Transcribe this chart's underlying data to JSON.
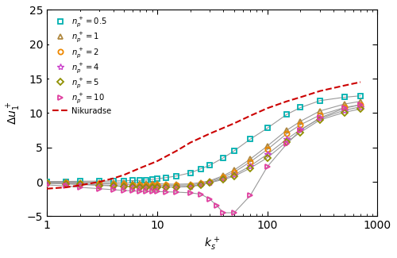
{
  "xlim": [
    1,
    1000
  ],
  "ylim": [
    -5,
    25
  ],
  "yticks": [
    -5,
    0,
    5,
    10,
    15,
    20,
    25
  ],
  "series": [
    {
      "label": "$n_p^+=0.5$",
      "color": "#00b0b0",
      "marker": "s",
      "markersize": 4.5,
      "mew": 1.3,
      "ks": [
        1,
        1.5,
        2,
        3,
        4,
        5,
        6,
        7,
        8,
        9,
        10,
        12,
        15,
        20,
        25,
        30,
        40,
        50,
        70,
        100,
        150,
        200,
        300,
        500,
        700
      ],
      "du": [
        0.05,
        0.05,
        0.08,
        0.1,
        0.12,
        0.15,
        0.18,
        0.22,
        0.28,
        0.35,
        0.45,
        0.6,
        0.85,
        1.3,
        1.9,
        2.4,
        3.5,
        4.5,
        6.2,
        7.8,
        9.8,
        10.8,
        11.8,
        12.3,
        12.5
      ]
    },
    {
      "label": "$n_p^+=1$",
      "color": "#b08840",
      "marker": "^",
      "markersize": 4.5,
      "mew": 1.3,
      "ks": [
        1,
        1.5,
        2,
        3,
        4,
        5,
        6,
        7,
        8,
        9,
        10,
        12,
        15,
        20,
        25,
        30,
        40,
        50,
        70,
        100,
        150,
        200,
        300,
        500,
        700
      ],
      "du": [
        -0.05,
        -0.05,
        -0.08,
        -0.1,
        -0.12,
        -0.15,
        -0.18,
        -0.2,
        -0.22,
        -0.25,
        -0.28,
        -0.32,
        -0.35,
        -0.3,
        -0.1,
        0.15,
        0.9,
        1.7,
        3.3,
        5.2,
        7.5,
        8.8,
        10.3,
        11.3,
        11.7
      ]
    },
    {
      "label": "$n_p^+=2$",
      "color": "#ee8800",
      "marker": "o",
      "markersize": 4.5,
      "mew": 1.3,
      "ks": [
        1,
        1.5,
        2,
        3,
        4,
        5,
        6,
        7,
        8,
        9,
        10,
        12,
        15,
        20,
        25,
        30,
        40,
        50,
        70,
        100,
        150,
        200,
        300,
        500,
        700
      ],
      "du": [
        -0.1,
        -0.12,
        -0.18,
        -0.25,
        -0.32,
        -0.38,
        -0.42,
        -0.45,
        -0.48,
        -0.5,
        -0.5,
        -0.5,
        -0.5,
        -0.45,
        -0.25,
        0.05,
        0.7,
        1.4,
        2.9,
        4.7,
        7.0,
        8.3,
        9.7,
        10.8,
        11.2
      ]
    },
    {
      "label": "$n_p^+=4$",
      "color": "#cc44cc",
      "marker": "*",
      "markersize": 6,
      "mew": 1.0,
      "ks": [
        1,
        1.5,
        2,
        3,
        4,
        5,
        6,
        7,
        8,
        9,
        10,
        12,
        15,
        20,
        25,
        30,
        40,
        50,
        70,
        100,
        150,
        200,
        300,
        500,
        700
      ],
      "du": [
        -0.18,
        -0.25,
        -0.35,
        -0.45,
        -0.55,
        -0.62,
        -0.67,
        -0.7,
        -0.72,
        -0.72,
        -0.72,
        -0.72,
        -0.72,
        -0.65,
        -0.4,
        -0.1,
        0.5,
        1.0,
        2.3,
        4.0,
        6.2,
        7.6,
        9.2,
        10.4,
        10.9
      ]
    },
    {
      "label": "$n_p^+=5$",
      "color": "#909000",
      "marker": "D",
      "markersize": 4.0,
      "mew": 1.3,
      "ks": [
        1,
        1.5,
        2,
        3,
        4,
        5,
        6,
        7,
        8,
        9,
        10,
        12,
        15,
        20,
        25,
        30,
        40,
        50,
        70,
        100,
        150,
        200,
        300,
        500,
        700
      ],
      "du": [
        -0.22,
        -0.3,
        -0.4,
        -0.52,
        -0.6,
        -0.67,
        -0.72,
        -0.75,
        -0.77,
        -0.77,
        -0.77,
        -0.77,
        -0.77,
        -0.7,
        -0.48,
        -0.15,
        0.35,
        0.8,
        2.0,
        3.5,
        5.8,
        7.2,
        9.0,
        10.1,
        10.6
      ]
    },
    {
      "label": "$n_p^+=10$",
      "color": "#e040a0",
      "marker": ">",
      "markersize": 4.5,
      "mew": 1.3,
      "ks": [
        1,
        1.5,
        2,
        3,
        4,
        5,
        6,
        7,
        8,
        9,
        10,
        12,
        15,
        20,
        25,
        30,
        35,
        40,
        50,
        70,
        100,
        150,
        200,
        300,
        500,
        700
      ],
      "du": [
        -0.45,
        -0.6,
        -0.8,
        -1.0,
        -1.15,
        -1.25,
        -1.32,
        -1.38,
        -1.4,
        -1.4,
        -1.42,
        -1.45,
        -1.5,
        -1.6,
        -1.8,
        -2.5,
        -3.5,
        -4.5,
        -4.5,
        -2.0,
        2.2,
        5.5,
        7.5,
        9.3,
        10.7,
        11.2
      ]
    }
  ],
  "nikuradse": {
    "label": "Nikuradse",
    "color": "#cc0000",
    "ks_log": [
      1.0,
      1.5,
      2.0,
      3.0,
      4.0,
      5.0,
      7.0,
      10.0,
      15.0,
      20.0,
      30.0,
      50.0,
      70.0,
      100.0,
      150.0,
      200.0,
      300.0,
      500.0,
      700.0
    ],
    "du": [
      -1.0,
      -0.8,
      -0.5,
      0.0,
      0.5,
      1.0,
      2.0,
      3.0,
      4.5,
      5.7,
      7.0,
      8.5,
      9.6,
      10.7,
      11.7,
      12.3,
      13.2,
      14.0,
      14.5
    ]
  },
  "line_color": "#999999"
}
